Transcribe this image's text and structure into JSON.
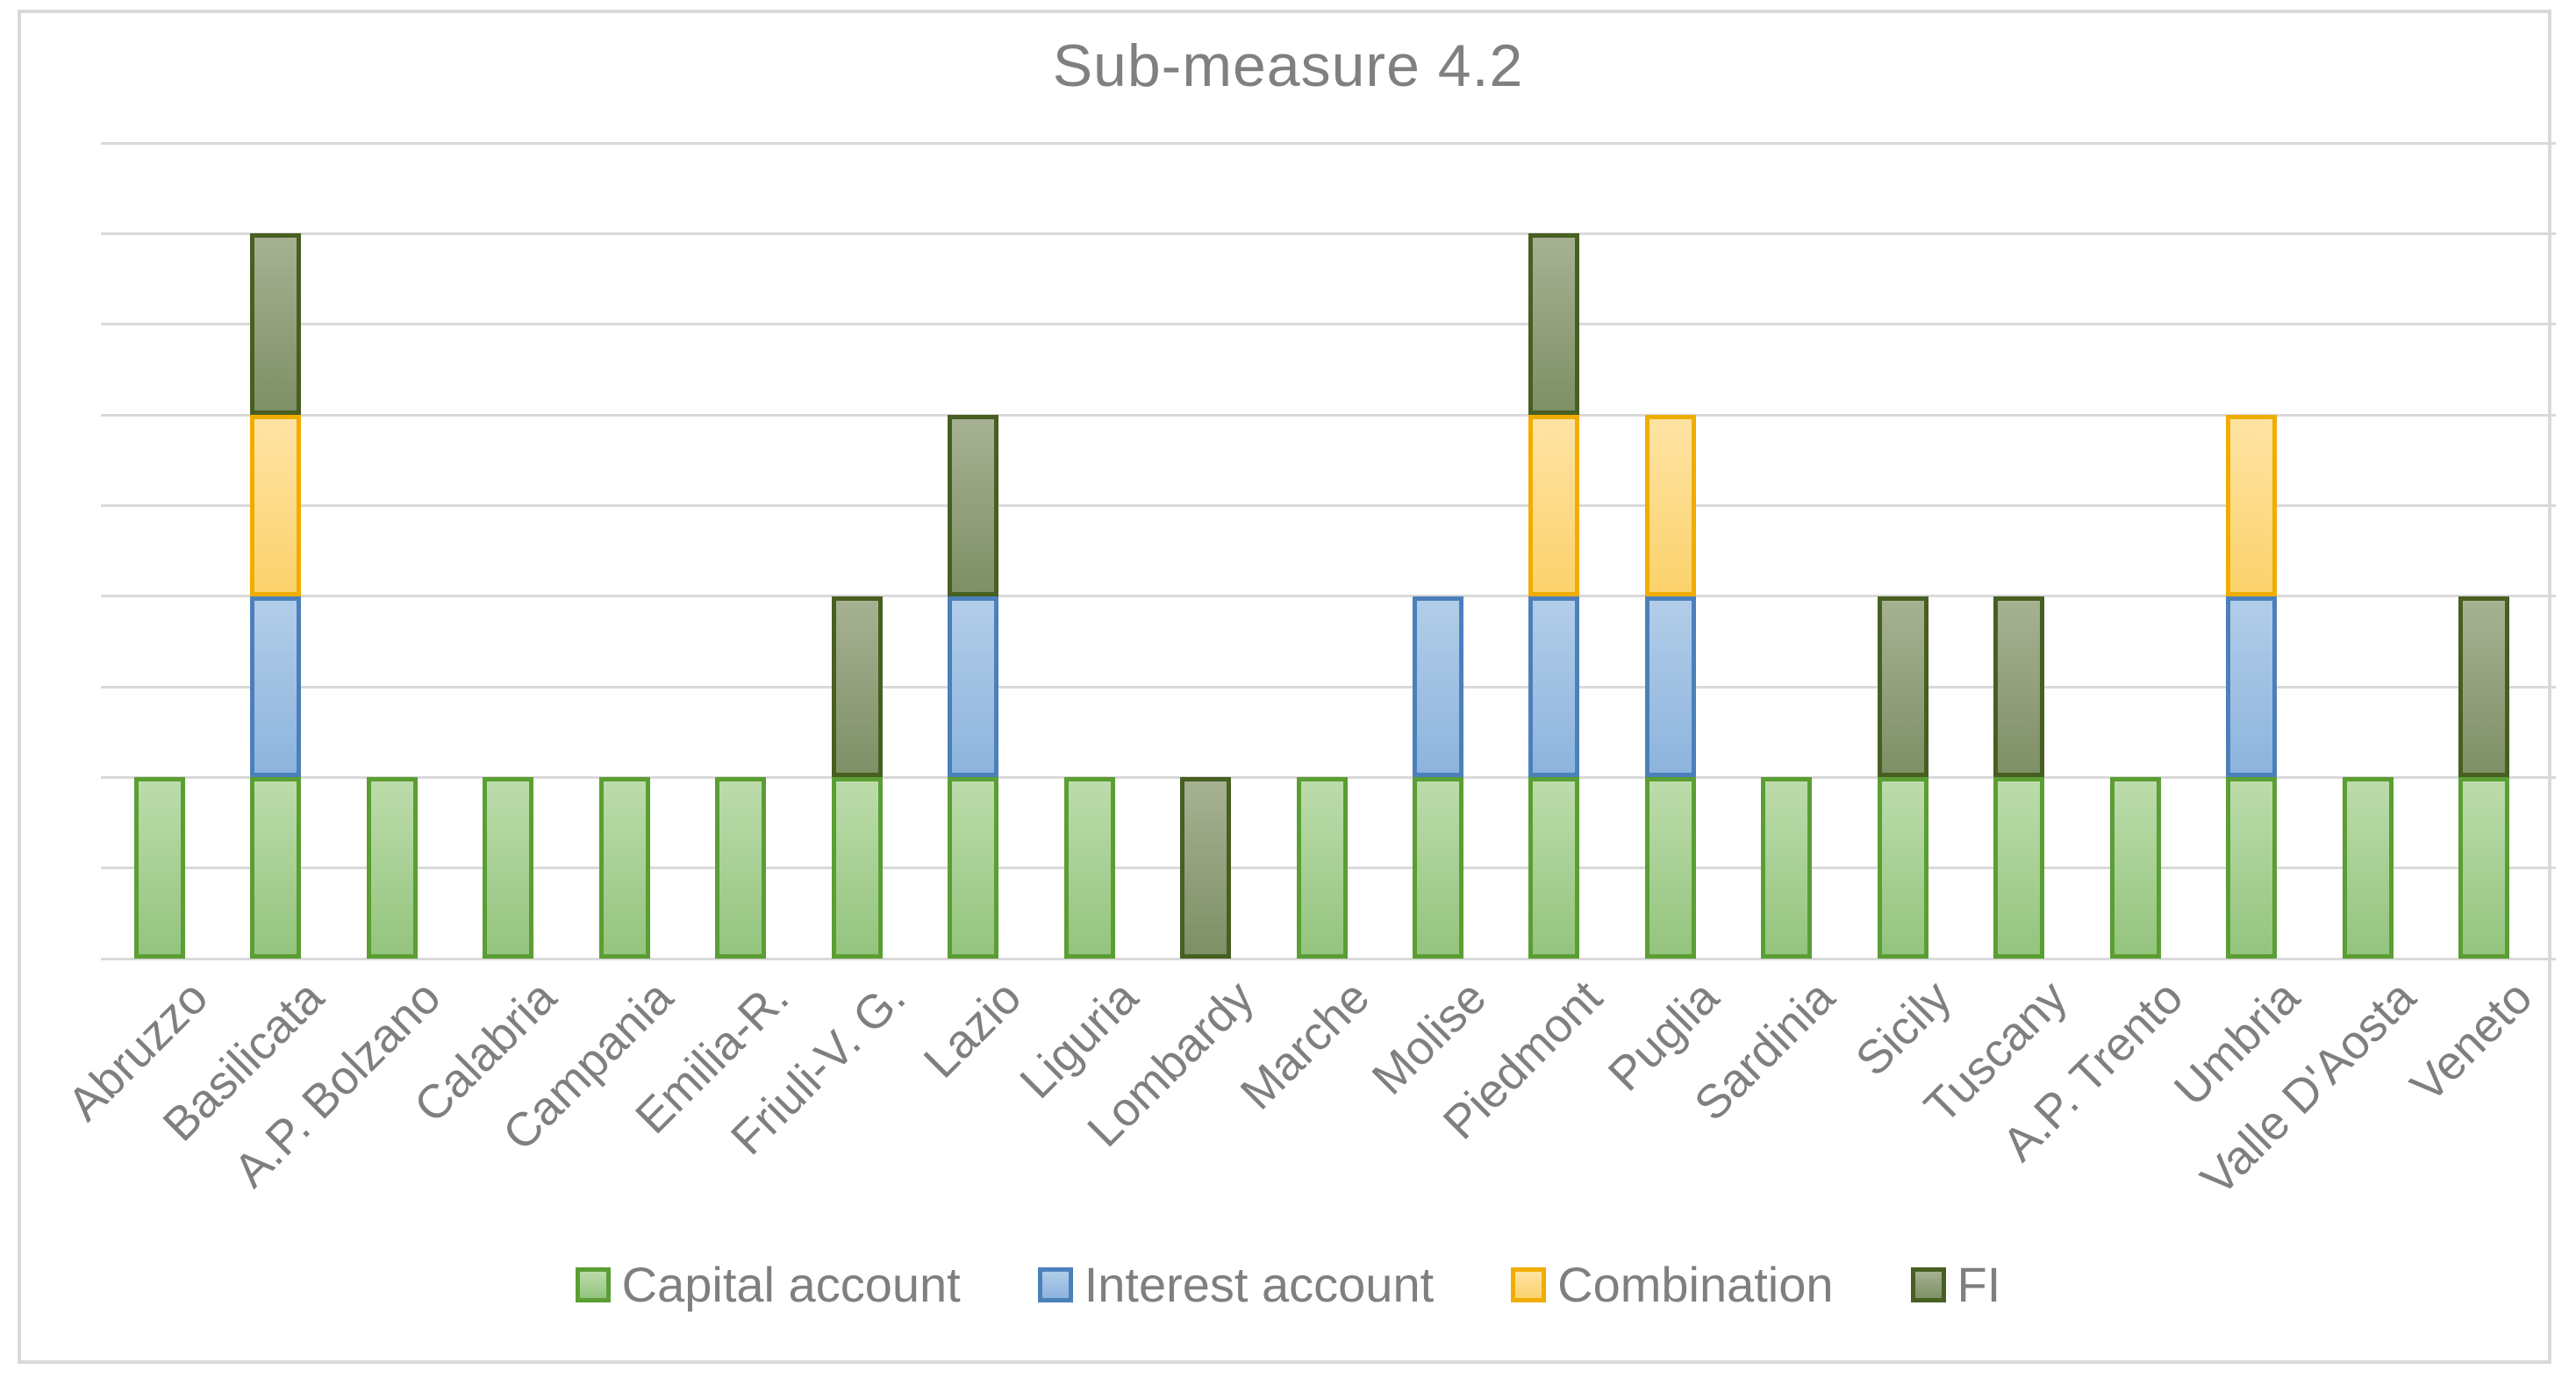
{
  "chart_data": {
    "type": "bar",
    "stacked": true,
    "title": "Sub-measure 4.2",
    "categories": [
      "Abruzzo",
      "Basilicata",
      "A.P. Bolzano",
      "Calabria",
      "Campania",
      "Emilia-R.",
      "Friuli-V. G.",
      "Lazio",
      "Liguria",
      "Lombardy",
      "Marche",
      "Molise",
      "Piedmont",
      "Puglia",
      "Sardinia",
      "Sicily",
      "Tuscany",
      "A.P. Trento",
      "Umbria",
      "Valle D'Aosta",
      "Veneto"
    ],
    "series": [
      {
        "name": "Capital account",
        "values": [
          1,
          1,
          1,
          1,
          1,
          1,
          1,
          1,
          1,
          0,
          1,
          1,
          1,
          1,
          1,
          1,
          1,
          1,
          1,
          1,
          1
        ],
        "fill_top": "#bcdcab",
        "fill_bottom": "#94c47e",
        "border": "#5b9e33"
      },
      {
        "name": "Interest account",
        "values": [
          0,
          1,
          0,
          0,
          0,
          0,
          0,
          1,
          0,
          0,
          0,
          1,
          1,
          1,
          0,
          0,
          0,
          0,
          1,
          0,
          0
        ],
        "fill_top": "#b2cde9",
        "fill_bottom": "#8db4dd",
        "border": "#4c80bb"
      },
      {
        "name": "Combination",
        "values": [
          0,
          1,
          0,
          0,
          0,
          0,
          0,
          0,
          0,
          0,
          0,
          0,
          1,
          1,
          0,
          0,
          0,
          0,
          1,
          0,
          0
        ],
        "fill_top": "#fee3a4",
        "fill_bottom": "#fcd26c",
        "border": "#f0ad00"
      },
      {
        "name": "FI",
        "values": [
          0,
          1,
          0,
          0,
          0,
          0,
          1,
          1,
          0,
          1,
          0,
          0,
          1,
          0,
          0,
          1,
          1,
          0,
          0,
          0,
          1
        ],
        "fill_top": "#a6b192",
        "fill_bottom": "#7e9066",
        "border": "#485f22"
      }
    ],
    "ylim": [
      0,
      4.5
    ],
    "gridline_step": 0.5,
    "grid": true,
    "y_axis_labels_visible": false,
    "legend_position": "bottom",
    "x_label_rotation_deg": -45
  },
  "colors": {
    "background": "#ffffff",
    "frame_border": "#d9d9d9",
    "gridline": "#d9d9d9",
    "title_text": "#808080",
    "axis_text": "#7f7f7f",
    "legend_text": "#7f7f7f"
  }
}
